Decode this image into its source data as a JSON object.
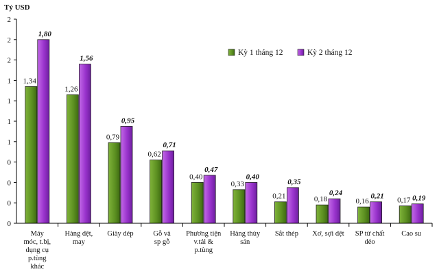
{
  "chart_data": {
    "type": "bar",
    "ylabel": "Tỷ USD",
    "y_tick_labels": [
      "0",
      "0",
      "0",
      "0",
      "1",
      "1",
      "1",
      "1",
      "2",
      "2",
      "2"
    ],
    "ylim": [
      0,
      2
    ],
    "grid": false,
    "legend_position": "top-right",
    "categories": [
      "Máy móc, t.bị, dụng cụ p.tùng khác",
      "Hàng dệt, may",
      "Giày dép",
      "Gỗ và sp gỗ",
      "Phương tiện v.tải & p.tùng",
      "Hàng thủy sản",
      "Sắt thép",
      "Xơ, sợi dệt",
      "SP từ chất dẻo",
      "Cao su"
    ],
    "category_lines": [
      [
        "Máy",
        "móc, t.bị,",
        "dụng cụ",
        "p.tùng",
        "khác"
      ],
      [
        "Hàng dệt,",
        "may"
      ],
      [
        "Giày dép"
      ],
      [
        "Gỗ và",
        "sp gỗ"
      ],
      [
        "Phương tiện",
        "v.tải &",
        "p.tùng"
      ],
      [
        "Hàng thủy",
        "sản"
      ],
      [
        "Sắt thép"
      ],
      [
        "Xơ, sợi dệt"
      ],
      [
        "SP từ chất",
        "dẻo"
      ],
      [
        "Cao su"
      ]
    ],
    "series": [
      {
        "name": "Kỳ 1 tháng 12",
        "color": "#5a8a1e",
        "values": [
          1.34,
          1.26,
          0.79,
          0.62,
          0.4,
          0.33,
          0.21,
          0.18,
          0.16,
          0.17
        ],
        "labels": [
          "1,34",
          "1,26",
          "0,79",
          "0,62",
          "0,40",
          "0,33",
          "0,21",
          "0,18",
          "0,16",
          "0,17"
        ]
      },
      {
        "name": "Kỳ 2 tháng 12",
        "color": "#9933cc",
        "values": [
          1.8,
          1.56,
          0.95,
          0.71,
          0.47,
          0.4,
          0.35,
          0.24,
          0.21,
          0.19
        ],
        "labels": [
          "1,80",
          "1,56",
          "0,95",
          "0,71",
          "0,47",
          "0,40",
          "0,35",
          "0,24",
          "0,21",
          "0,19"
        ]
      }
    ]
  }
}
